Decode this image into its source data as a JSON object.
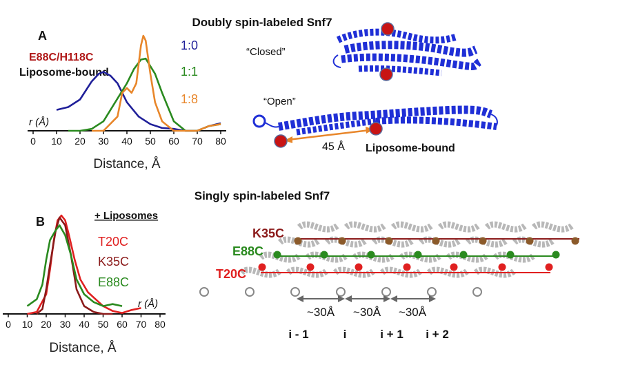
{
  "panel_a": {
    "title": "Doubly spin-labeled Snf7",
    "letter": "A",
    "mutant": "E88C/H118C",
    "state": "Liposome-bound",
    "ratios": [
      {
        "label": "1:0",
        "color": "#1f1f99"
      },
      {
        "label": "1:1",
        "color": "#2a8a1f"
      },
      {
        "label": "1:8",
        "color": "#e8862a"
      }
    ],
    "r_label": "r (Å)",
    "xlabel": "Distance, Å",
    "ticks": [
      "0",
      "10",
      "20",
      "30",
      "40",
      "50",
      "60",
      "70",
      "80"
    ],
    "closed_label": "“Closed”",
    "open_label": "“Open”",
    "distance_label": "45 Å",
    "bound_label": "Liposome-bound"
  },
  "panel_b": {
    "title": "Singly spin-labeled Snf7",
    "letter": "B",
    "condition": "+ Liposomes",
    "mutants": [
      {
        "label": "T20C",
        "color": "#e02020"
      },
      {
        "label": "K35C",
        "color": "#8b1a1a"
      },
      {
        "label": "E88C",
        "color": "#2a8a1f"
      }
    ],
    "r_label": "r (Å)",
    "xlabel": "Distance, Å",
    "ticks": [
      "0",
      "10",
      "20",
      "30",
      "40",
      "50",
      "60",
      "70",
      "80"
    ],
    "filament_labels": {
      "k35c": "K35C",
      "e88c": "E88C",
      "t20c": "T20C"
    },
    "spacing": [
      "~30Å",
      "~30Å",
      "~30Å"
    ],
    "positions": [
      "i - 1",
      "i",
      "i + 1",
      "i + 2"
    ]
  },
  "colors": {
    "helix_blue": "#1f2fd6",
    "spin_red": "#c81414",
    "orange": "#e8862a",
    "dark_red": "#8b1a1a",
    "green": "#2a8a1f",
    "red": "#e02020"
  },
  "chart_data": [
    {
      "type": "line",
      "title": "",
      "xlabel": "Distance, Å",
      "ylabel": "",
      "xlim": [
        0,
        80
      ],
      "series": [
        {
          "name": "1:0",
          "x": [
            10,
            15,
            20,
            25,
            28,
            30,
            33,
            36,
            40,
            45,
            50,
            55,
            60,
            65,
            70,
            75,
            80
          ],
          "y": [
            0.22,
            0.25,
            0.33,
            0.52,
            0.6,
            0.62,
            0.58,
            0.5,
            0.3,
            0.15,
            0.07,
            0.03,
            0.02,
            0.0,
            0.0,
            0.05,
            0.08
          ]
        },
        {
          "name": "1:1",
          "x": [
            15,
            20,
            25,
            30,
            35,
            40,
            43,
            46,
            48,
            52,
            55,
            60,
            65,
            70,
            75,
            80
          ],
          "y": [
            0.0,
            0.0,
            0.02,
            0.1,
            0.3,
            0.5,
            0.65,
            0.75,
            0.76,
            0.6,
            0.4,
            0.1,
            0.0,
            0.0,
            0.05,
            0.07
          ]
        },
        {
          "name": "1:8",
          "x": [
            25,
            30,
            32,
            34,
            36,
            38,
            40,
            42,
            44,
            46,
            47,
            48,
            50,
            52,
            55,
            60,
            65,
            70,
            75,
            80
          ],
          "y": [
            0.0,
            0.0,
            0.05,
            0.1,
            0.15,
            0.4,
            0.45,
            0.4,
            0.5,
            0.9,
            1.0,
            0.95,
            0.6,
            0.3,
            0.1,
            0.0,
            0.0,
            0.0,
            0.05,
            0.07
          ]
        }
      ]
    },
    {
      "type": "line",
      "title": "",
      "xlabel": "Distance, Å",
      "ylabel": "",
      "xlim": [
        0,
        80
      ],
      "series": [
        {
          "name": "T20C",
          "x": [
            10,
            15,
            20,
            22,
            24,
            26,
            28,
            30,
            32,
            35,
            38,
            42,
            46,
            50,
            55,
            60,
            65,
            70
          ],
          "y": [
            0.0,
            0.02,
            0.2,
            0.45,
            0.75,
            0.95,
            1.0,
            0.95,
            0.8,
            0.55,
            0.35,
            0.22,
            0.15,
            0.08,
            0.03,
            0.01,
            0.04,
            0.06
          ]
        },
        {
          "name": "K35C",
          "x": [
            15,
            18,
            20,
            22,
            25,
            27,
            30,
            33,
            36,
            40,
            45,
            50,
            55
          ],
          "y": [
            0.0,
            0.05,
            0.25,
            0.5,
            0.85,
            0.98,
            0.9,
            0.6,
            0.25,
            0.08,
            0.02,
            0.0,
            0.0
          ]
        },
        {
          "name": "E88C",
          "x": [
            10,
            15,
            18,
            20,
            22,
            25,
            27,
            30,
            33,
            36,
            40,
            45,
            50,
            55,
            60
          ],
          "y": [
            0.08,
            0.15,
            0.3,
            0.55,
            0.75,
            0.85,
            0.9,
            0.8,
            0.6,
            0.35,
            0.2,
            0.12,
            0.08,
            0.1,
            0.08
          ]
        }
      ]
    }
  ]
}
